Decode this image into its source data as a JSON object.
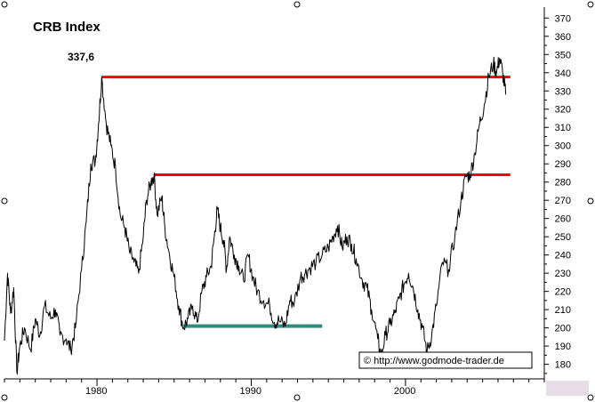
{
  "chart_data": {
    "type": "line",
    "title": "CRB Index",
    "peak_annotation": "337,6",
    "copyright": "© http://www.godmode-trader.de",
    "xlabel": "",
    "ylabel": "",
    "xlim": [
      1974,
      2009
    ],
    "ylim": [
      172,
      376
    ],
    "x_ticks": [
      1980,
      1990,
      2000
    ],
    "y_ticks": [
      180,
      190,
      200,
      210,
      220,
      230,
      240,
      250,
      260,
      270,
      280,
      290,
      300,
      310,
      320,
      330,
      340,
      350,
      360,
      370
    ],
    "grid": false,
    "colors": {
      "series": "#000000",
      "resistance": "#ff0000",
      "support": "#2e8b80",
      "footer": "#e6dde6"
    },
    "series": [
      {
        "values": [
          [
            1974.0,
            193
          ],
          [
            1974.2,
            230
          ],
          [
            1974.4,
            208
          ],
          [
            1974.6,
            222
          ],
          [
            1974.8,
            176
          ],
          [
            1975.0,
            190
          ],
          [
            1975.3,
            200
          ],
          [
            1975.7,
            188
          ],
          [
            1976.0,
            205
          ],
          [
            1976.3,
            196
          ],
          [
            1976.6,
            212
          ],
          [
            1977.0,
            205
          ],
          [
            1977.3,
            210
          ],
          [
            1977.6,
            196
          ],
          [
            1978.0,
            194
          ],
          [
            1978.3,
            188
          ],
          [
            1978.6,
            200
          ],
          [
            1979.0,
            232
          ],
          [
            1979.3,
            258
          ],
          [
            1979.6,
            290
          ],
          [
            1979.9,
            292
          ],
          [
            1980.1,
            312
          ],
          [
            1980.3,
            337.6
          ],
          [
            1980.6,
            312
          ],
          [
            1980.9,
            300
          ],
          [
            1981.2,
            288
          ],
          [
            1981.5,
            262
          ],
          [
            1981.8,
            255
          ],
          [
            1982.1,
            242
          ],
          [
            1982.4,
            236
          ],
          [
            1982.7,
            230
          ],
          [
            1983.0,
            250
          ],
          [
            1983.2,
            270
          ],
          [
            1983.5,
            280
          ],
          [
            1983.7,
            284
          ],
          [
            1983.9,
            262
          ],
          [
            1984.2,
            272
          ],
          [
            1984.4,
            255
          ],
          [
            1984.7,
            240
          ],
          [
            1985.0,
            228
          ],
          [
            1985.3,
            212
          ],
          [
            1985.6,
            200
          ],
          [
            1985.9,
            205
          ],
          [
            1986.2,
            212
          ],
          [
            1986.5,
            203
          ],
          [
            1986.8,
            220
          ],
          [
            1987.1,
            228
          ],
          [
            1987.4,
            234
          ],
          [
            1987.6,
            250
          ],
          [
            1987.8,
            265
          ],
          [
            1988.0,
            255
          ],
          [
            1988.2,
            248
          ],
          [
            1988.4,
            232
          ],
          [
            1988.6,
            250
          ],
          [
            1988.9,
            240
          ],
          [
            1989.2,
            234
          ],
          [
            1989.5,
            226
          ],
          [
            1989.8,
            240
          ],
          [
            1990.1,
            228
          ],
          [
            1990.4,
            220
          ],
          [
            1990.8,
            215
          ],
          [
            1991.2,
            212
          ],
          [
            1991.5,
            203
          ],
          [
            1991.8,
            204
          ],
          [
            1992.2,
            201
          ],
          [
            1992.5,
            215
          ],
          [
            1992.8,
            214
          ],
          [
            1993.2,
            228
          ],
          [
            1993.5,
            230
          ],
          [
            1993.8,
            233
          ],
          [
            1994.2,
            236
          ],
          [
            1994.6,
            240
          ],
          [
            1995.0,
            244
          ],
          [
            1995.3,
            250
          ],
          [
            1995.6,
            256
          ],
          [
            1995.9,
            244
          ],
          [
            1996.2,
            250
          ],
          [
            1996.5,
            246
          ],
          [
            1996.8,
            238
          ],
          [
            1997.2,
            226
          ],
          [
            1997.5,
            222
          ],
          [
            1997.8,
            210
          ],
          [
            1998.2,
            194
          ],
          [
            1998.4,
            184
          ],
          [
            1998.7,
            196
          ],
          [
            1999.0,
            202
          ],
          [
            1999.3,
            208
          ],
          [
            1999.6,
            216
          ],
          [
            1999.9,
            224
          ],
          [
            2000.2,
            230
          ],
          [
            2000.5,
            222
          ],
          [
            2000.8,
            210
          ],
          [
            2001.1,
            200
          ],
          [
            2001.4,
            187
          ],
          [
            2001.7,
            196
          ],
          [
            2002.0,
            212
          ],
          [
            2002.4,
            236
          ],
          [
            2002.8,
            232
          ],
          [
            2003.2,
            250
          ],
          [
            2003.6,
            270
          ],
          [
            2003.9,
            283
          ],
          [
            2004.2,
            284
          ],
          [
            2004.5,
            296
          ],
          [
            2004.8,
            312
          ],
          [
            2005.1,
            322
          ],
          [
            2005.4,
            338
          ],
          [
            2005.7,
            345
          ],
          [
            2005.9,
            340
          ],
          [
            2006.1,
            348
          ],
          [
            2006.3,
            340
          ],
          [
            2006.5,
            328
          ]
        ]
      }
    ],
    "reference_lines": [
      {
        "kind": "resistance",
        "y": 337.6,
        "x_start": 1980.3,
        "x_end": 2006.8
      },
      {
        "kind": "resistance",
        "y": 284,
        "x_start": 1983.7,
        "x_end": 2006.8
      },
      {
        "kind": "support",
        "y": 201,
        "x_start": 1985.6,
        "x_end": 1994.6
      },
      {
        "kind": "support",
        "y": 184,
        "x_start": 1998.4,
        "x_end": 2002.6
      }
    ]
  }
}
